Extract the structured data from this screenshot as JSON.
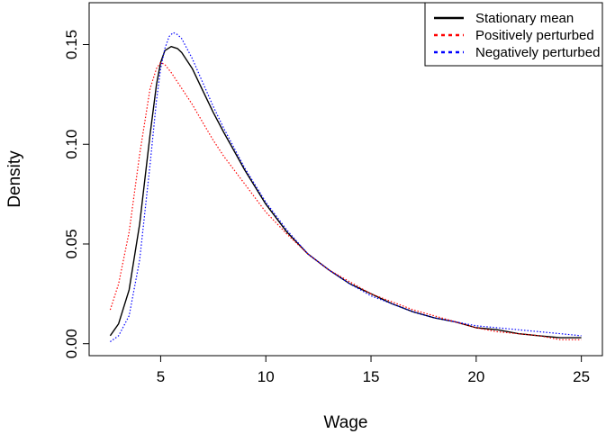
{
  "chart_data": {
    "type": "line",
    "title": "",
    "xlabel": "Wage",
    "ylabel": "Density",
    "xlim": [
      1.6,
      26
    ],
    "ylim": [
      -0.006,
      0.171
    ],
    "xticks": [
      5,
      10,
      15,
      20,
      25
    ],
    "xtick_labels": [
      "5",
      "10",
      "15",
      "20",
      "25"
    ],
    "yticks": [
      0.0,
      0.05,
      0.1,
      0.15
    ],
    "ytick_labels": [
      "0.00",
      "0.05",
      "0.10",
      "0.15"
    ],
    "grid": false,
    "legend_position": "top-right",
    "series": [
      {
        "name": "Stationary mean",
        "color": "#000000",
        "style": "solid",
        "x": [
          2.6,
          3.0,
          3.5,
          4.0,
          4.5,
          4.8,
          5.0,
          5.2,
          5.5,
          5.8,
          6.0,
          6.5,
          7.0,
          7.5,
          8.0,
          9.0,
          10.0,
          11.0,
          12.0,
          13.0,
          14.0,
          15.0,
          16.0,
          17.0,
          18.0,
          19.0,
          20.0,
          21.0,
          22.0,
          23.0,
          24.0,
          25.0
        ],
        "y": [
          0.004,
          0.01,
          0.027,
          0.06,
          0.105,
          0.13,
          0.141,
          0.147,
          0.149,
          0.148,
          0.146,
          0.138,
          0.127,
          0.116,
          0.106,
          0.087,
          0.07,
          0.056,
          0.045,
          0.037,
          0.03,
          0.025,
          0.02,
          0.016,
          0.013,
          0.011,
          0.008,
          0.007,
          0.005,
          0.004,
          0.003,
          0.003
        ]
      },
      {
        "name": "Positively perturbed",
        "color": "#ff0000",
        "style": "dotted",
        "x": [
          2.6,
          3.0,
          3.5,
          4.0,
          4.5,
          4.8,
          5.0,
          5.2,
          5.5,
          6.0,
          6.5,
          7.0,
          7.5,
          8.0,
          9.0,
          10.0,
          11.0,
          12.0,
          13.0,
          14.0,
          15.0,
          16.0,
          17.0,
          18.0,
          19.0,
          20.0,
          21.0,
          22.0,
          23.0,
          24.0,
          25.0
        ],
        "y": [
          0.017,
          0.03,
          0.056,
          0.095,
          0.128,
          0.138,
          0.141,
          0.14,
          0.136,
          0.128,
          0.12,
          0.111,
          0.102,
          0.094,
          0.08,
          0.066,
          0.055,
          0.045,
          0.037,
          0.031,
          0.025,
          0.021,
          0.017,
          0.014,
          0.011,
          0.008,
          0.006,
          0.005,
          0.004,
          0.002,
          0.002
        ]
      },
      {
        "name": "Negatively perturbed",
        "color": "#0000ff",
        "style": "dotted",
        "x": [
          2.6,
          3.0,
          3.5,
          4.0,
          4.5,
          4.8,
          5.0,
          5.2,
          5.4,
          5.6,
          5.8,
          6.0,
          6.5,
          7.0,
          7.5,
          8.0,
          9.0,
          10.0,
          11.0,
          12.0,
          13.0,
          14.0,
          15.0,
          16.0,
          17.0,
          18.0,
          19.0,
          20.0,
          21.0,
          22.0,
          23.0,
          24.0,
          25.0
        ],
        "y": [
          0.001,
          0.004,
          0.014,
          0.042,
          0.09,
          0.122,
          0.138,
          0.148,
          0.154,
          0.156,
          0.155,
          0.153,
          0.143,
          0.131,
          0.119,
          0.108,
          0.088,
          0.071,
          0.057,
          0.045,
          0.037,
          0.03,
          0.024,
          0.02,
          0.016,
          0.013,
          0.011,
          0.009,
          0.008,
          0.007,
          0.006,
          0.005,
          0.004
        ]
      }
    ]
  }
}
